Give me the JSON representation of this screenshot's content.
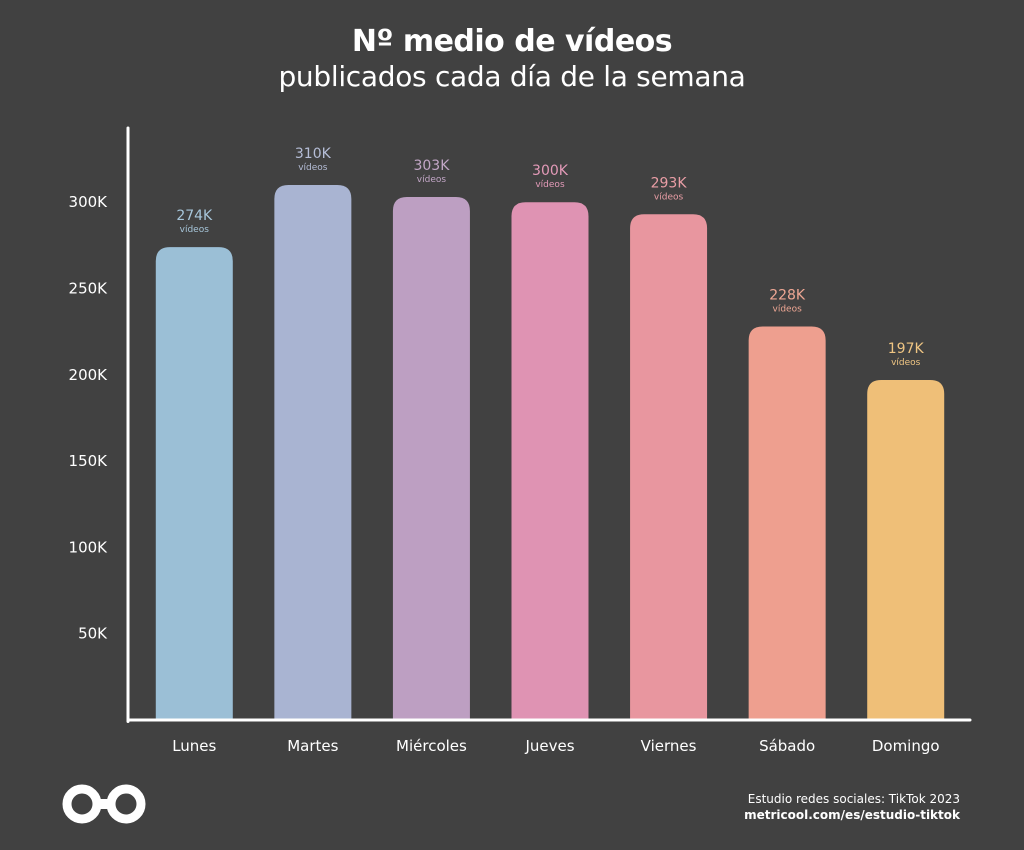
{
  "title": "Nº medio de vídeos",
  "subtitle": "publicados cada día de la semana",
  "chart_data": {
    "type": "bar",
    "categories": [
      "Lunes",
      "Martes",
      "Miércoles",
      "Jueves",
      "Viernes",
      "Sábado",
      "Domingo"
    ],
    "values": [
      274000,
      310000,
      303000,
      300000,
      293000,
      228000,
      197000
    ],
    "value_labels": [
      "274K",
      "310K",
      "303K",
      "300K",
      "293K",
      "228K",
      "197K"
    ],
    "value_unit_label": "vídeos",
    "yticks": [
      50000,
      100000,
      150000,
      200000,
      250000,
      300000
    ],
    "ytick_labels": [
      "50K",
      "100K",
      "150K",
      "200K",
      "250K",
      "300K"
    ],
    "ylim": [
      0,
      340000
    ],
    "colors": [
      "#9bbfd6",
      "#a9b4d2",
      "#bd9fc2",
      "#df93b3",
      "#e8969f",
      "#ee9f8f",
      "#efbf78"
    ],
    "label_colors": [
      "#a7c6da",
      "#b5bdd6",
      "#c2a6c6",
      "#e39ab8",
      "#ea9ea6",
      "#efa794",
      "#efc583"
    ],
    "grid": false
  },
  "footer": {
    "source": "Estudio redes sociales: TikTok 2023",
    "url": "metricool.com/es/estudio-tiktok"
  },
  "logo_icon": "metricool-infinity-logo"
}
